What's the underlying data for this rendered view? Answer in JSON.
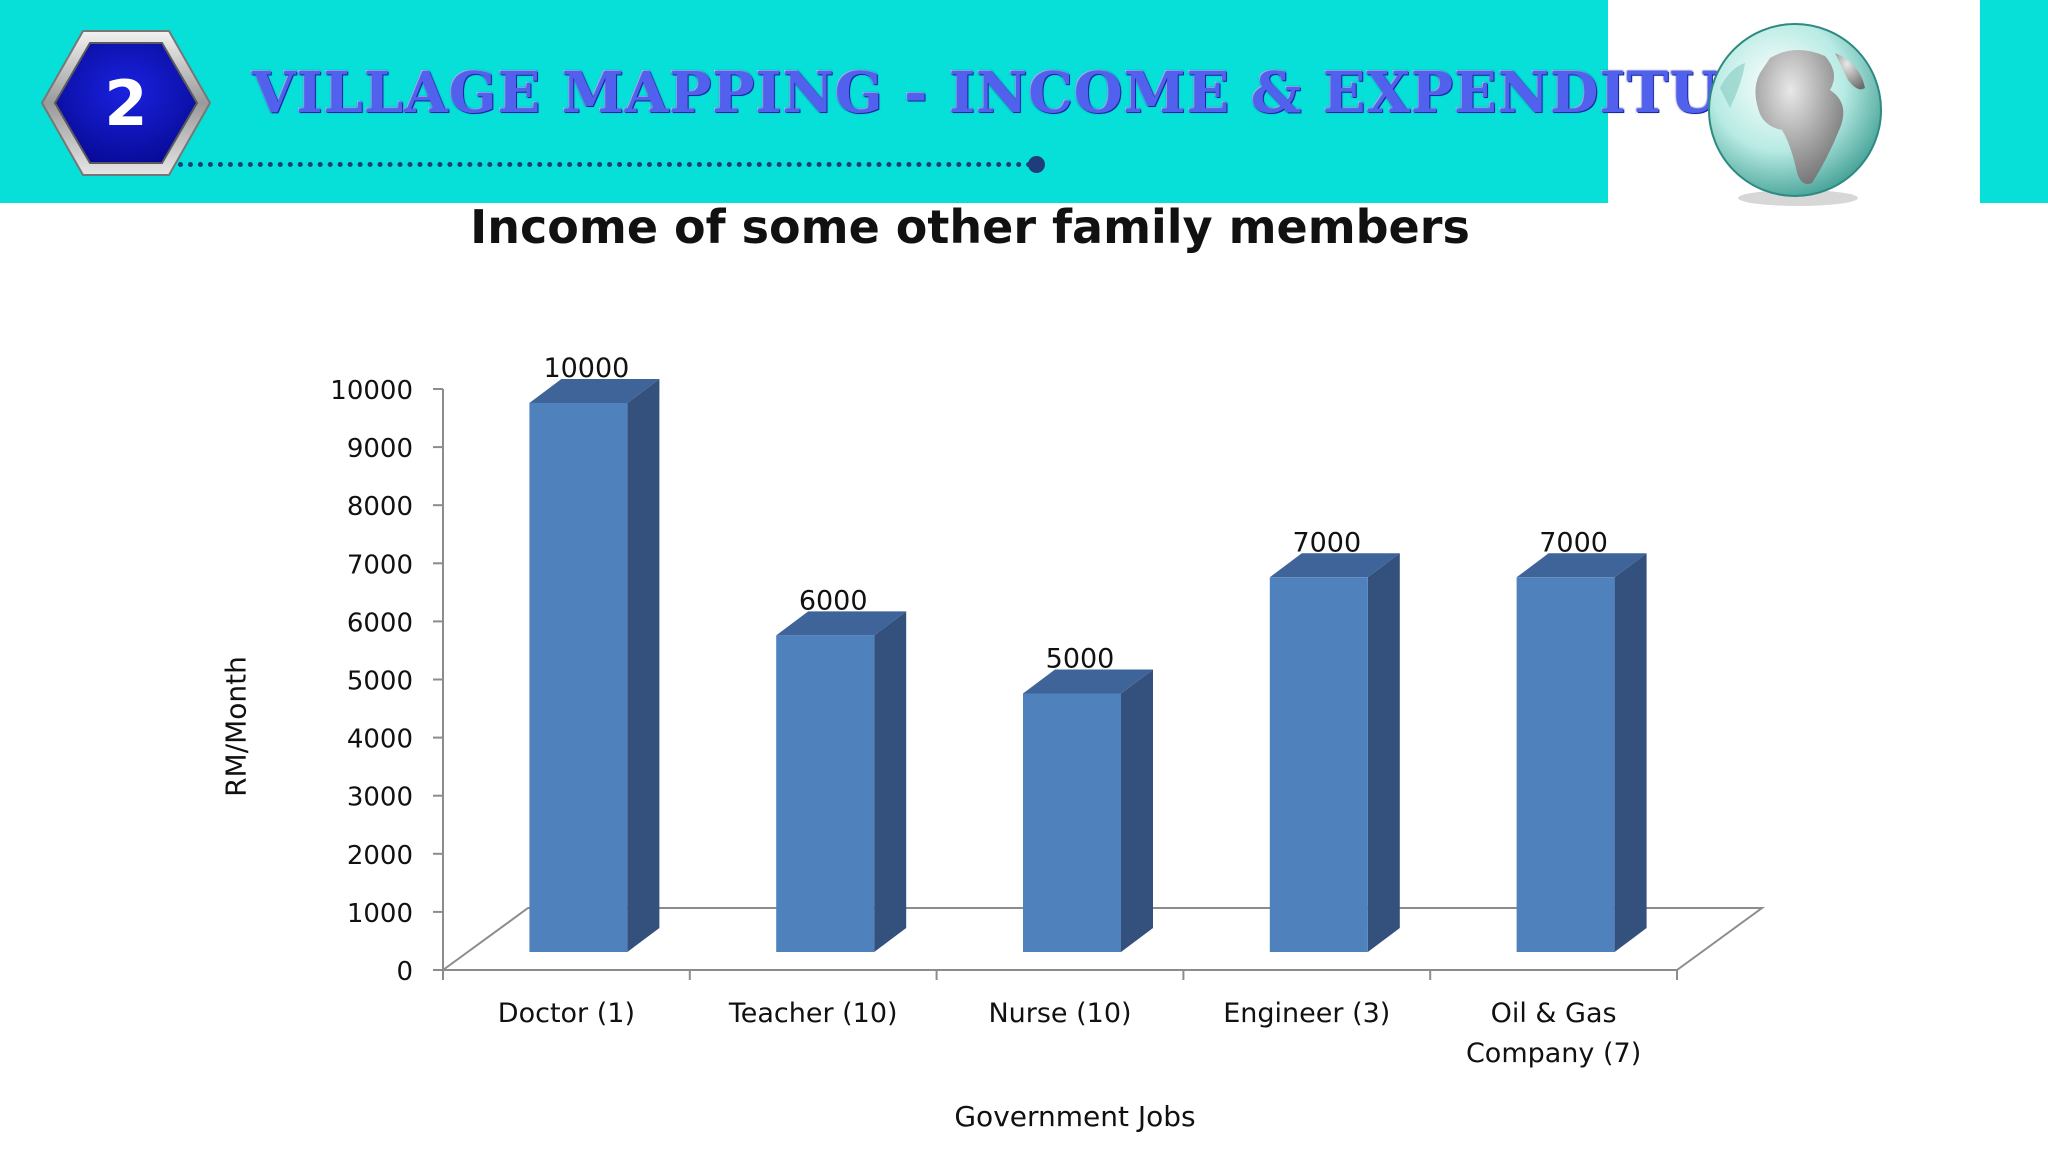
{
  "header": {
    "badge_number": "2",
    "title": "VILLAGE MAPPING - INCOME & EXPENDITURE",
    "band_color": "#07e0d8",
    "badge_color": "#0a0fc8",
    "globe_icon": "globe-icon"
  },
  "chart_data": {
    "type": "bar",
    "title": "Income of some other family members",
    "xlabel": "Government Jobs",
    "ylabel": "RM/Month",
    "categories": [
      "Doctor (1)",
      "Teacher (10)",
      "Nurse (10)",
      "Engineer (3)",
      "Oil & Gas Company (7)"
    ],
    "category_lines": [
      [
        "Doctor (1)"
      ],
      [
        "Teacher (10)"
      ],
      [
        "Nurse (10)"
      ],
      [
        "Engineer (3)"
      ],
      [
        "Oil & Gas",
        "Company (7)"
      ]
    ],
    "values": [
      10000,
      6000,
      5000,
      7000,
      7000
    ],
    "value_labels": [
      "10000",
      "6000",
      "5000",
      "7000",
      "7000"
    ],
    "ylim": [
      0,
      10000
    ],
    "yticks": [
      0,
      1000,
      2000,
      3000,
      4000,
      5000,
      6000,
      7000,
      8000,
      9000,
      10000
    ],
    "bar_color": "#4f81bd",
    "bar_side_color": "#34507d",
    "bar_top_color": "#3e649a",
    "style": "3d-column",
    "legend": "none",
    "grid": false
  }
}
